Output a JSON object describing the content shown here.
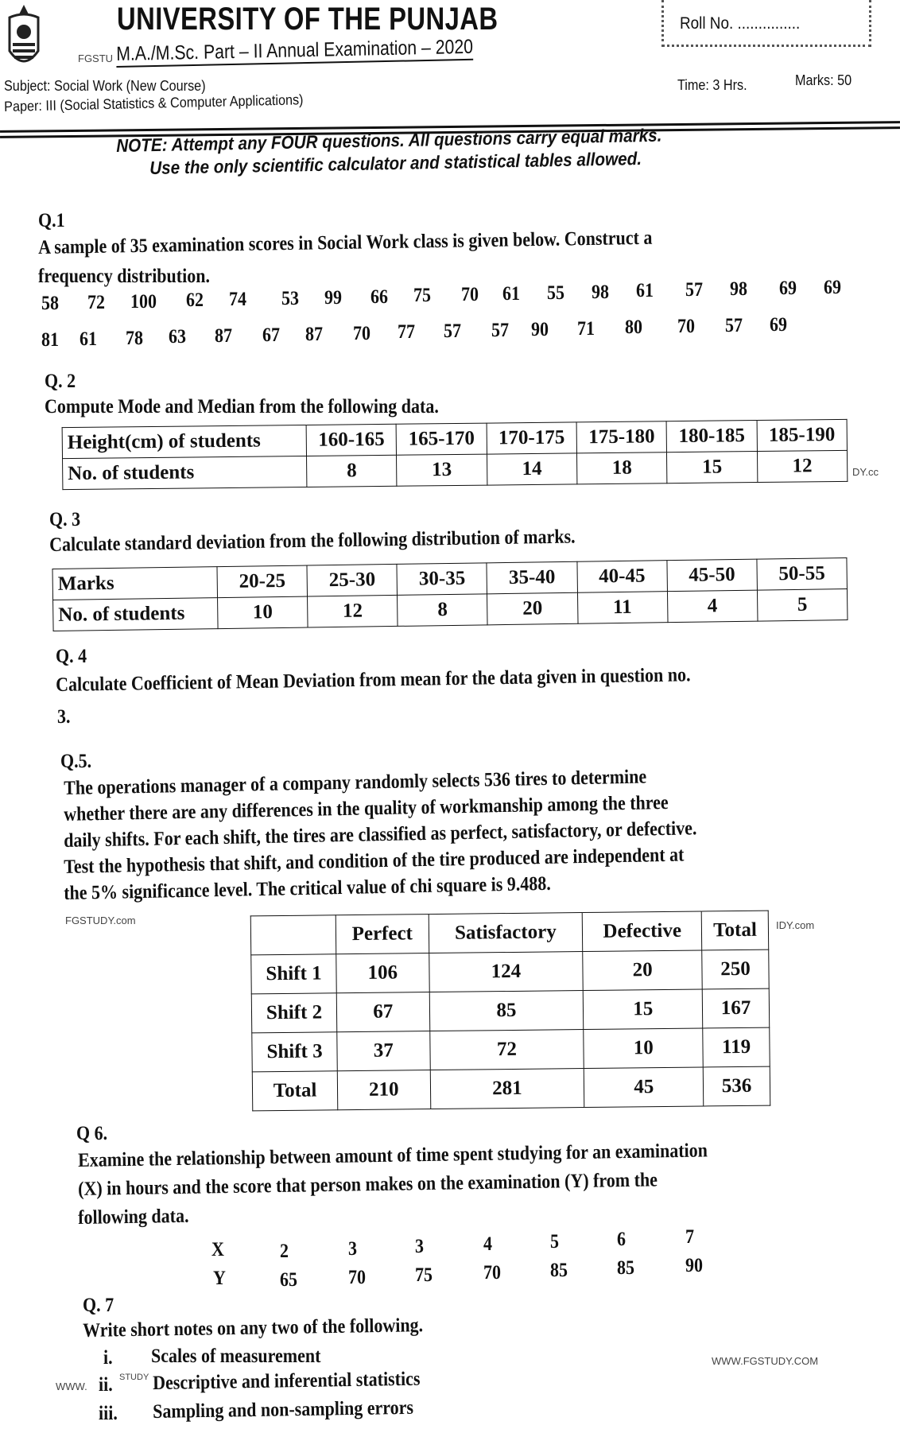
{
  "header": {
    "university": "UNIVERSITY OF THE PUNJAB",
    "exam": "M.A./M.Sc.  Part – II   Annual Examination – 2020",
    "subject": "Subject: Social Work  (New Course)",
    "paper": "Paper: III (Social Statistics & Computer Applications)",
    "time": "Time: 3 Hrs.",
    "marks": "Marks: 50",
    "roll_no": "Roll No. ..............."
  },
  "note": {
    "line1": "NOTE: Attempt any FOUR questions. All questions carry equal marks.",
    "line2": "Use the only scientific calculator and statistical tables allowed."
  },
  "watermarks": {
    "left_header": "FGSTU",
    "q5": "FGSTUDY.com",
    "q5_right": "IDY.com",
    "q2": "DY.cc",
    "footer": "WWW.FGSTUDY.COM",
    "q7_left": "WWW.",
    "q7_mid": "STUDY"
  },
  "q1": {
    "label": "Q.1",
    "text1": "A sample of 35 examination scores in Social Work class is given below. Construct a",
    "text2": "frequency distribution.",
    "row1": [
      "58",
      "72",
      "100",
      "62",
      "74",
      "53",
      "99",
      "66",
      "75",
      "70",
      "61",
      "55",
      "98",
      "61",
      "57",
      "98",
      "69",
      "69"
    ],
    "row2": [
      "81",
      "61",
      "78",
      "63",
      "87",
      "67",
      "87",
      "70",
      "77",
      "57",
      "57",
      "90",
      "71",
      "80",
      "70",
      "57",
      "69"
    ]
  },
  "q2": {
    "label": "Q. 2",
    "text": "Compute Mode and Median from the following data.",
    "header": [
      "Height(cm) of students",
      "160-165",
      "165-170",
      "170-175",
      "175-180",
      "180-185",
      "185-190"
    ],
    "row": [
      "No. of students",
      "8",
      "13",
      "14",
      "18",
      "15",
      "12"
    ]
  },
  "q3": {
    "label": "Q. 3",
    "text": "Calculate standard deviation from the following distribution of marks.",
    "header": [
      "Marks",
      "20-25",
      "25-30",
      "30-35",
      "35-40",
      "40-45",
      "45-50",
      "50-55"
    ],
    "row": [
      "No. of students",
      "10",
      "12",
      "8",
      "20",
      "11",
      "4",
      "5"
    ]
  },
  "q4": {
    "label": "Q. 4",
    "text1": "Calculate Coefficient of Mean Deviation from mean for the data given in question no.",
    "text2": "3."
  },
  "q5": {
    "label": "Q.5.",
    "lines": [
      "The operations manager of a company randomly selects 536 tires to determine",
      "whether there are any differences in the quality of workmanship among the three",
      "daily shifts. For each shift, the tires are classified as perfect, satisfactory, or defective.",
      "Test the hypothesis that shift, and condition of the tire produced are independent at",
      "the 5% significance level.  The critical value of chi square is 9.488."
    ],
    "table": {
      "header": [
        "",
        "Perfect",
        "Satisfactory",
        "Defective",
        "Total"
      ],
      "rows": [
        [
          "Shift 1",
          "106",
          "124",
          "20",
          "250"
        ],
        [
          "Shift 2",
          "67",
          "85",
          "15",
          "167"
        ],
        [
          "Shift 3",
          "37",
          "72",
          "10",
          "119"
        ],
        [
          "Total",
          "210",
          "281",
          "45",
          "536"
        ]
      ]
    }
  },
  "q6": {
    "label": "Q 6.",
    "lines": [
      "Examine the relationship between amount of time spent studying for an examination",
      "(X) in hours and the score that person makes on the examination (Y) from the",
      "following data."
    ],
    "x_label": "X",
    "y_label": "Y",
    "x": [
      "2",
      "3",
      "3",
      "4",
      "5",
      "6",
      "7"
    ],
    "y": [
      "65",
      "70",
      "75",
      "70",
      "85",
      "85",
      "90"
    ]
  },
  "q7": {
    "label": "Q. 7",
    "text": "Write short notes on any two of the following.",
    "items": [
      {
        "num": "i.",
        "text": "Scales of measurement"
      },
      {
        "num": "ii.",
        "text": "Descriptive and inferential statistics"
      },
      {
        "num": "iii.",
        "text": "Sampling and non-sampling errors"
      }
    ]
  }
}
